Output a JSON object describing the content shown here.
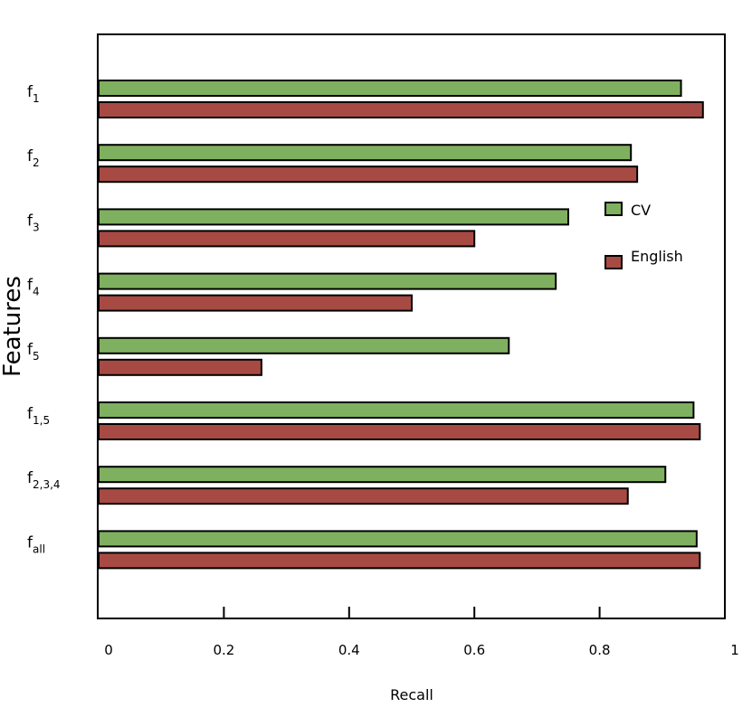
{
  "chart_data": {
    "type": "bar",
    "orientation": "horizontal",
    "categories": [
      {
        "base": "f",
        "sub": "1"
      },
      {
        "base": "f",
        "sub": "2"
      },
      {
        "base": "f",
        "sub": "3"
      },
      {
        "base": "f",
        "sub": "4"
      },
      {
        "base": "f",
        "sub": "5"
      },
      {
        "base": "f",
        "sub": "1,5"
      },
      {
        "base": "f",
        "sub": "2,3,4"
      },
      {
        "base": "f",
        "sub": "all"
      }
    ],
    "series": [
      {
        "name": "CV",
        "color": "#7FB05F",
        "values": [
          0.93,
          0.85,
          0.75,
          0.73,
          0.655,
          0.95,
          0.905,
          0.955
        ]
      },
      {
        "name": "English",
        "color": "#A84A44",
        "values": [
          0.965,
          0.86,
          0.6,
          0.5,
          0.26,
          0.96,
          0.845,
          0.96
        ]
      }
    ],
    "xlabel": "Recall",
    "ylabel": "Features",
    "xlim": [
      0,
      1
    ],
    "xticks": [
      "0",
      "0.2",
      "0.4",
      "0.6",
      "0.8",
      "1"
    ],
    "grid": false,
    "legend_position": "right"
  }
}
